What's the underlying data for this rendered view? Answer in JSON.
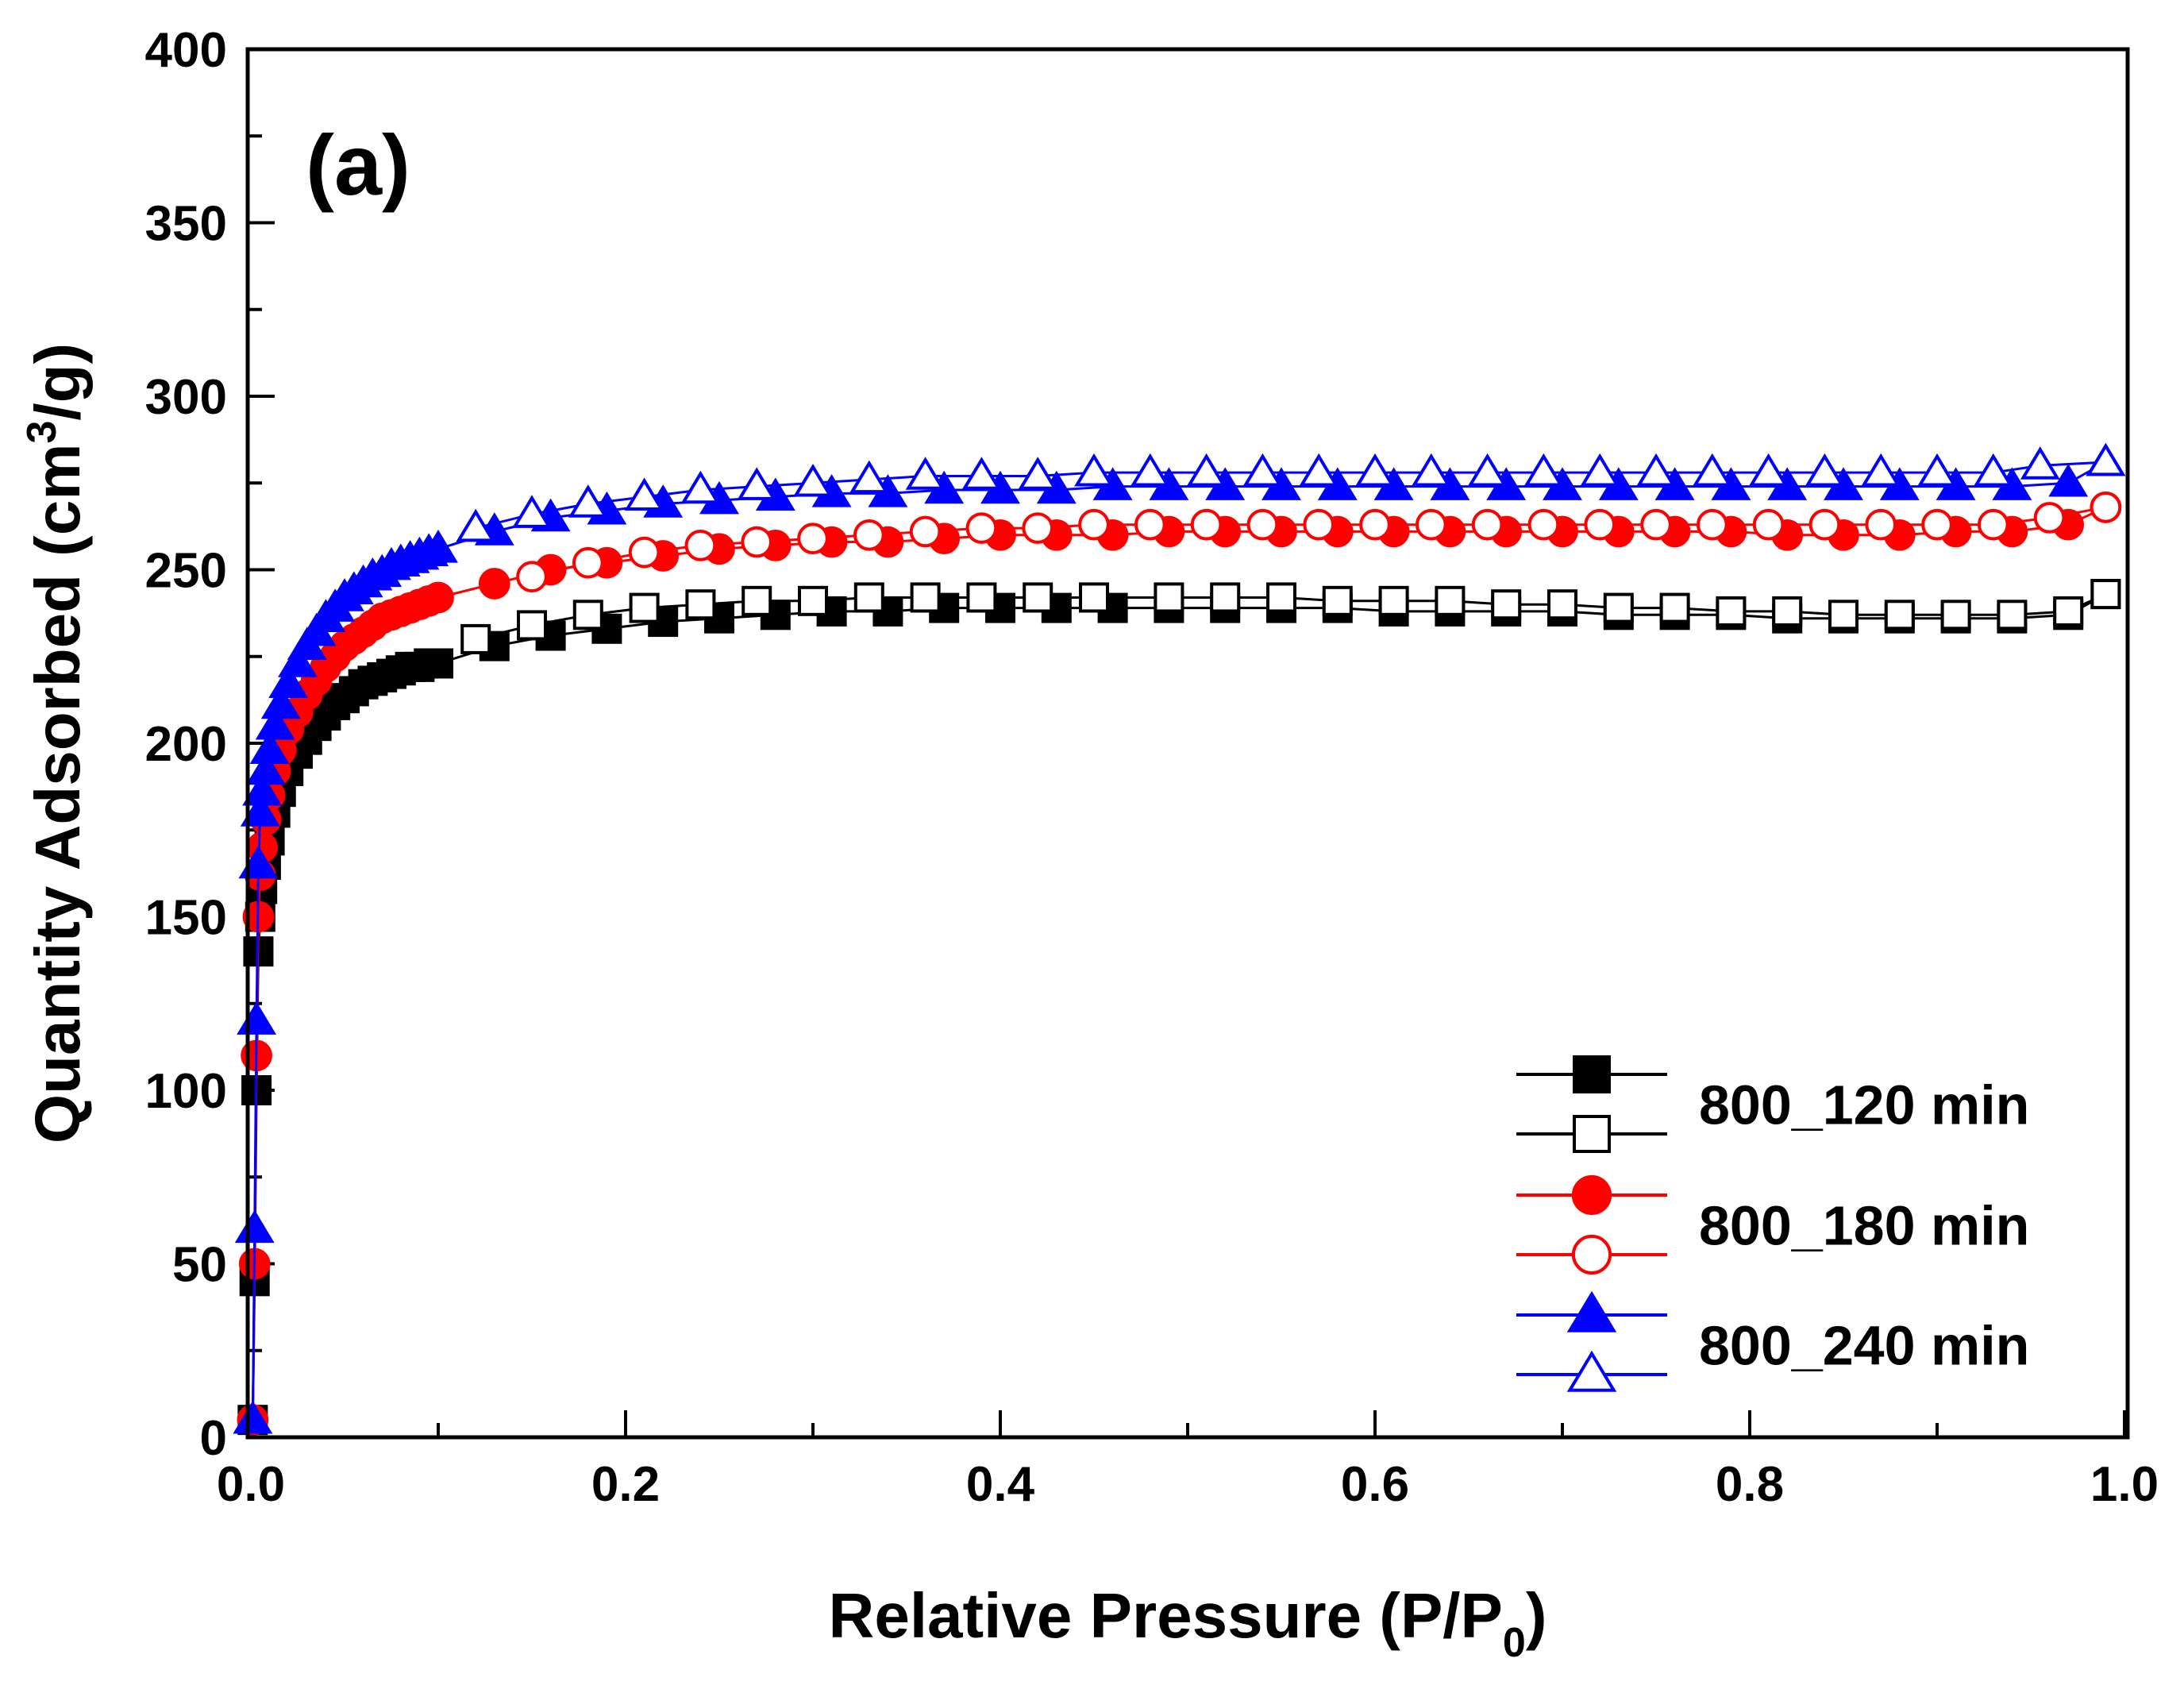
{
  "chart_data": {
    "type": "line",
    "panel_label": "(a)",
    "xlabel_main": "Relative Pressure (P/P",
    "xlabel_sub": "0",
    "xlabel_close": ")",
    "ylabel_main": "Quantity Adsorbed (cm",
    "ylabel_sup": "3",
    "ylabel_close": "/g)",
    "xlim": [
      0.0,
      1.0
    ],
    "ylim": [
      0,
      400
    ],
    "x_ticks": [
      0.0,
      0.2,
      0.4,
      0.6,
      0.8,
      1.0
    ],
    "x_tick_labels": [
      "0.0",
      "0.2",
      "0.4",
      "0.6",
      "0.8",
      "1.0"
    ],
    "y_ticks": [
      0,
      50,
      100,
      150,
      200,
      250,
      300,
      350,
      400
    ],
    "y_tick_labels": [
      "0",
      "50",
      "100",
      "150",
      "200",
      "250",
      "300",
      "350",
      "400"
    ],
    "legend_position": "bottom-right",
    "legend": [
      {
        "label": "800_120 min",
        "color": "#000000",
        "markers": [
          "square-filled",
          "square-open"
        ]
      },
      {
        "label": "800_180 min",
        "color": "#ff0000",
        "markers": [
          "circle-filled",
          "circle-open"
        ]
      },
      {
        "label": "800_240 min",
        "color": "#0000ff",
        "markers": [
          "triangle-filled",
          "triangle-open"
        ]
      }
    ],
    "series": [
      {
        "name": "800_120 min adsorption",
        "sample": "800_120 min",
        "branch": "adsorption",
        "color": "#000000",
        "marker": "square",
        "filled": true,
        "x": [
          0.001,
          0.002,
          0.003,
          0.004,
          0.005,
          0.006,
          0.008,
          0.01,
          0.013,
          0.016,
          0.02,
          0.025,
          0.03,
          0.035,
          0.04,
          0.045,
          0.05,
          0.055,
          0.06,
          0.065,
          0.07,
          0.075,
          0.08,
          0.085,
          0.09,
          0.095,
          0.1,
          0.13,
          0.16,
          0.19,
          0.22,
          0.25,
          0.28,
          0.31,
          0.34,
          0.37,
          0.4,
          0.43,
          0.46,
          0.49,
          0.52,
          0.55,
          0.58,
          0.61,
          0.64,
          0.67,
          0.7,
          0.73,
          0.76,
          0.79,
          0.82,
          0.85,
          0.88,
          0.91,
          0.94,
          0.97,
          0.99
        ],
        "y": [
          5,
          45,
          100,
          140,
          150,
          158,
          165,
          172,
          180,
          186,
          192,
          197,
          201,
          205,
          208,
          211,
          213,
          215,
          217,
          218,
          219,
          220,
          221,
          222,
          222,
          223,
          223,
          228,
          231,
          233,
          235,
          236,
          237,
          238,
          238,
          239,
          239,
          239,
          239,
          239,
          239,
          239,
          239,
          238,
          238,
          238,
          238,
          237,
          237,
          237,
          236,
          236,
          236,
          236,
          236,
          237,
          243
        ]
      },
      {
        "name": "800_120 min desorption",
        "sample": "800_120 min",
        "branch": "desorption",
        "color": "#000000",
        "marker": "square",
        "filled": false,
        "x": [
          0.99,
          0.97,
          0.94,
          0.91,
          0.88,
          0.85,
          0.82,
          0.79,
          0.76,
          0.73,
          0.7,
          0.67,
          0.64,
          0.61,
          0.58,
          0.55,
          0.52,
          0.49,
          0.45,
          0.42,
          0.39,
          0.36,
          0.33,
          0.3,
          0.27,
          0.24,
          0.21,
          0.18,
          0.15,
          0.12
        ],
        "y": [
          243,
          238,
          237,
          237,
          237,
          237,
          238,
          238,
          239,
          239,
          240,
          240,
          241,
          241,
          241,
          242,
          242,
          242,
          242,
          242,
          242,
          242,
          242,
          241,
          241,
          240,
          239,
          237,
          234,
          230
        ]
      },
      {
        "name": "800_180 min adsorption",
        "sample": "800_180 min",
        "branch": "adsorption",
        "color": "#ff0000",
        "marker": "circle",
        "filled": true,
        "x": [
          0.001,
          0.002,
          0.003,
          0.004,
          0.005,
          0.006,
          0.008,
          0.01,
          0.013,
          0.016,
          0.02,
          0.025,
          0.03,
          0.035,
          0.04,
          0.045,
          0.05,
          0.055,
          0.06,
          0.065,
          0.07,
          0.075,
          0.08,
          0.085,
          0.09,
          0.095,
          0.1,
          0.13,
          0.16,
          0.19,
          0.22,
          0.25,
          0.28,
          0.31,
          0.34,
          0.37,
          0.4,
          0.43,
          0.46,
          0.49,
          0.52,
          0.55,
          0.58,
          0.61,
          0.64,
          0.67,
          0.7,
          0.73,
          0.76,
          0.79,
          0.82,
          0.85,
          0.88,
          0.91,
          0.94,
          0.97,
          0.99
        ],
        "y": [
          5,
          50,
          110,
          150,
          162,
          170,
          178,
          185,
          192,
          198,
          204,
          209,
          214,
          218,
          222,
          225,
          228,
          230,
          232,
          234,
          236,
          237,
          238,
          239,
          240,
          241,
          242,
          246,
          250,
          252,
          254,
          256,
          257,
          258,
          258,
          259,
          260,
          260,
          260,
          261,
          261,
          261,
          261,
          261,
          261,
          261,
          261,
          261,
          261,
          261,
          260,
          260,
          260,
          261,
          261,
          263,
          268
        ]
      },
      {
        "name": "800_180 min desorption",
        "sample": "800_180 min",
        "branch": "desorption",
        "color": "#ff0000",
        "marker": "circle",
        "filled": false,
        "x": [
          0.99,
          0.96,
          0.93,
          0.9,
          0.87,
          0.84,
          0.81,
          0.78,
          0.75,
          0.72,
          0.69,
          0.66,
          0.63,
          0.6,
          0.57,
          0.54,
          0.51,
          0.48,
          0.45,
          0.42,
          0.39,
          0.36,
          0.33,
          0.3,
          0.27,
          0.24,
          0.21,
          0.18,
          0.15
        ],
        "y": [
          268,
          265,
          263,
          263,
          263,
          263,
          263,
          263,
          263,
          263,
          263,
          263,
          263,
          263,
          263,
          263,
          263,
          263,
          263,
          262,
          262,
          261,
          260,
          259,
          258,
          257,
          255,
          252,
          248
        ]
      },
      {
        "name": "800_240 min adsorption",
        "sample": "800_240 min",
        "branch": "adsorption",
        "color": "#0000ff",
        "marker": "triangle",
        "filled": true,
        "x": [
          0.001,
          0.002,
          0.003,
          0.004,
          0.005,
          0.006,
          0.008,
          0.01,
          0.013,
          0.016,
          0.02,
          0.025,
          0.03,
          0.035,
          0.04,
          0.045,
          0.05,
          0.055,
          0.06,
          0.065,
          0.07,
          0.075,
          0.08,
          0.085,
          0.09,
          0.095,
          0.1,
          0.13,
          0.16,
          0.19,
          0.22,
          0.25,
          0.28,
          0.31,
          0.34,
          0.37,
          0.4,
          0.43,
          0.46,
          0.49,
          0.52,
          0.55,
          0.58,
          0.61,
          0.64,
          0.67,
          0.7,
          0.73,
          0.76,
          0.79,
          0.82,
          0.85,
          0.88,
          0.91,
          0.94,
          0.97,
          0.99
        ],
        "y": [
          5,
          60,
          120,
          165,
          180,
          186,
          192,
          198,
          205,
          211,
          217,
          223,
          228,
          232,
          236,
          239,
          242,
          244,
          246,
          248,
          249,
          251,
          252,
          253,
          254,
          255,
          256,
          261,
          265,
          267,
          269,
          270,
          271,
          272,
          272,
          273,
          273,
          273,
          274,
          274,
          274,
          274,
          274,
          274,
          274,
          274,
          274,
          274,
          274,
          274,
          274,
          274,
          274,
          274,
          274,
          275,
          281
        ]
      },
      {
        "name": "800_240 min desorption",
        "sample": "800_240 min",
        "branch": "desorption",
        "color": "#0000ff",
        "marker": "triangle",
        "filled": false,
        "x": [
          0.99,
          0.955,
          0.93,
          0.9,
          0.87,
          0.84,
          0.81,
          0.78,
          0.75,
          0.72,
          0.69,
          0.66,
          0.63,
          0.6,
          0.57,
          0.54,
          0.51,
          0.48,
          0.45,
          0.42,
          0.39,
          0.36,
          0.33,
          0.3,
          0.27,
          0.24,
          0.21,
          0.18,
          0.15,
          0.12
        ],
        "y": [
          281,
          280,
          278,
          278,
          278,
          278,
          278,
          278,
          278,
          278,
          278,
          278,
          278,
          278,
          278,
          278,
          278,
          278,
          278,
          277,
          277,
          277,
          276,
          275,
          274,
          273,
          271,
          269,
          266,
          262
        ]
      }
    ]
  }
}
